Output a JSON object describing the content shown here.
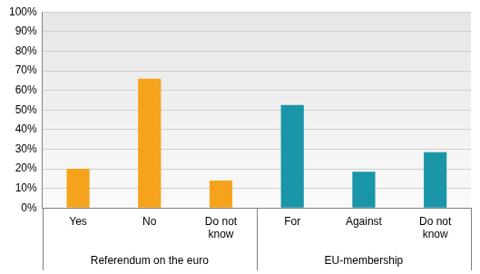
{
  "chart_data": {
    "type": "bar",
    "categories": [
      "Yes",
      "No",
      "Do not know",
      "For",
      "Against",
      "Do not know"
    ],
    "series": [
      {
        "name": "Referendum on the euro",
        "color": "#f5a31c",
        "values": [
          20,
          66,
          14,
          null,
          null,
          null
        ]
      },
      {
        "name": "EU-membership",
        "color": "#1a96a8",
        "values": [
          null,
          null,
          null,
          52.5,
          18.5,
          28.5
        ]
      }
    ],
    "ylim": [
      0,
      100
    ],
    "yticks": [
      {
        "value": 0,
        "label": "0%"
      },
      {
        "value": 10,
        "label": "10%"
      },
      {
        "value": 20,
        "label": "20%"
      },
      {
        "value": 30,
        "label": "30%"
      },
      {
        "value": 40,
        "label": "40%"
      },
      {
        "value": 50,
        "label": "50%"
      },
      {
        "value": 60,
        "label": "60%"
      },
      {
        "value": 70,
        "label": "70%"
      },
      {
        "value": 80,
        "label": "80%"
      },
      {
        "value": 90,
        "label": "90%"
      },
      {
        "value": 100,
        "label": "100%"
      }
    ],
    "grid": true
  }
}
